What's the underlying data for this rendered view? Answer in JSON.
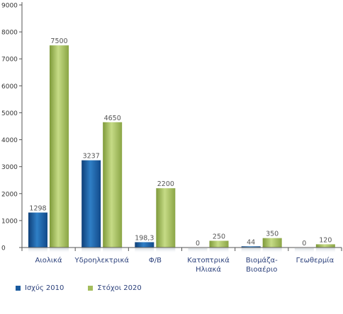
{
  "chart_data": {
    "type": "bar",
    "categories": [
      "Αιολικά",
      "Υδροηλεκτρικά",
      "Φ/Β",
      "Κατοπτρικά Ηλιακά",
      "Βιομάζα-Βιοαέριο",
      "Γεωθερμία"
    ],
    "category_lines": [
      [
        "Αιολικά"
      ],
      [
        "Υδροηλεκτρικά"
      ],
      [
        "Φ/Β"
      ],
      [
        "Κατοπτρικά",
        "Ηλιακά"
      ],
      [
        "Βιομάζα-",
        "Βιοαέριο"
      ],
      [
        "Γεωθερμία"
      ]
    ],
    "series": [
      {
        "name": "Ισχύς 2010",
        "values": [
          1298,
          3237,
          198.3,
          0,
          44,
          0
        ],
        "labels": [
          "1298",
          "3237",
          "198,3",
          "0",
          "44",
          "0"
        ],
        "color": "#1a5a9e"
      },
      {
        "name": "Στόχοι 2020",
        "values": [
          7500,
          4650,
          2200,
          250,
          350,
          120
        ],
        "labels": [
          "7500",
          "4650",
          "2200",
          "250",
          "350",
          "120"
        ],
        "color": "#a3bd5c"
      }
    ],
    "ylim": [
      0,
      9000
    ],
    "yticks": [
      0,
      1000,
      2000,
      3000,
      4000,
      5000,
      6000,
      7000,
      8000,
      9000
    ],
    "grid": false,
    "legend_position": "bottom-left"
  }
}
